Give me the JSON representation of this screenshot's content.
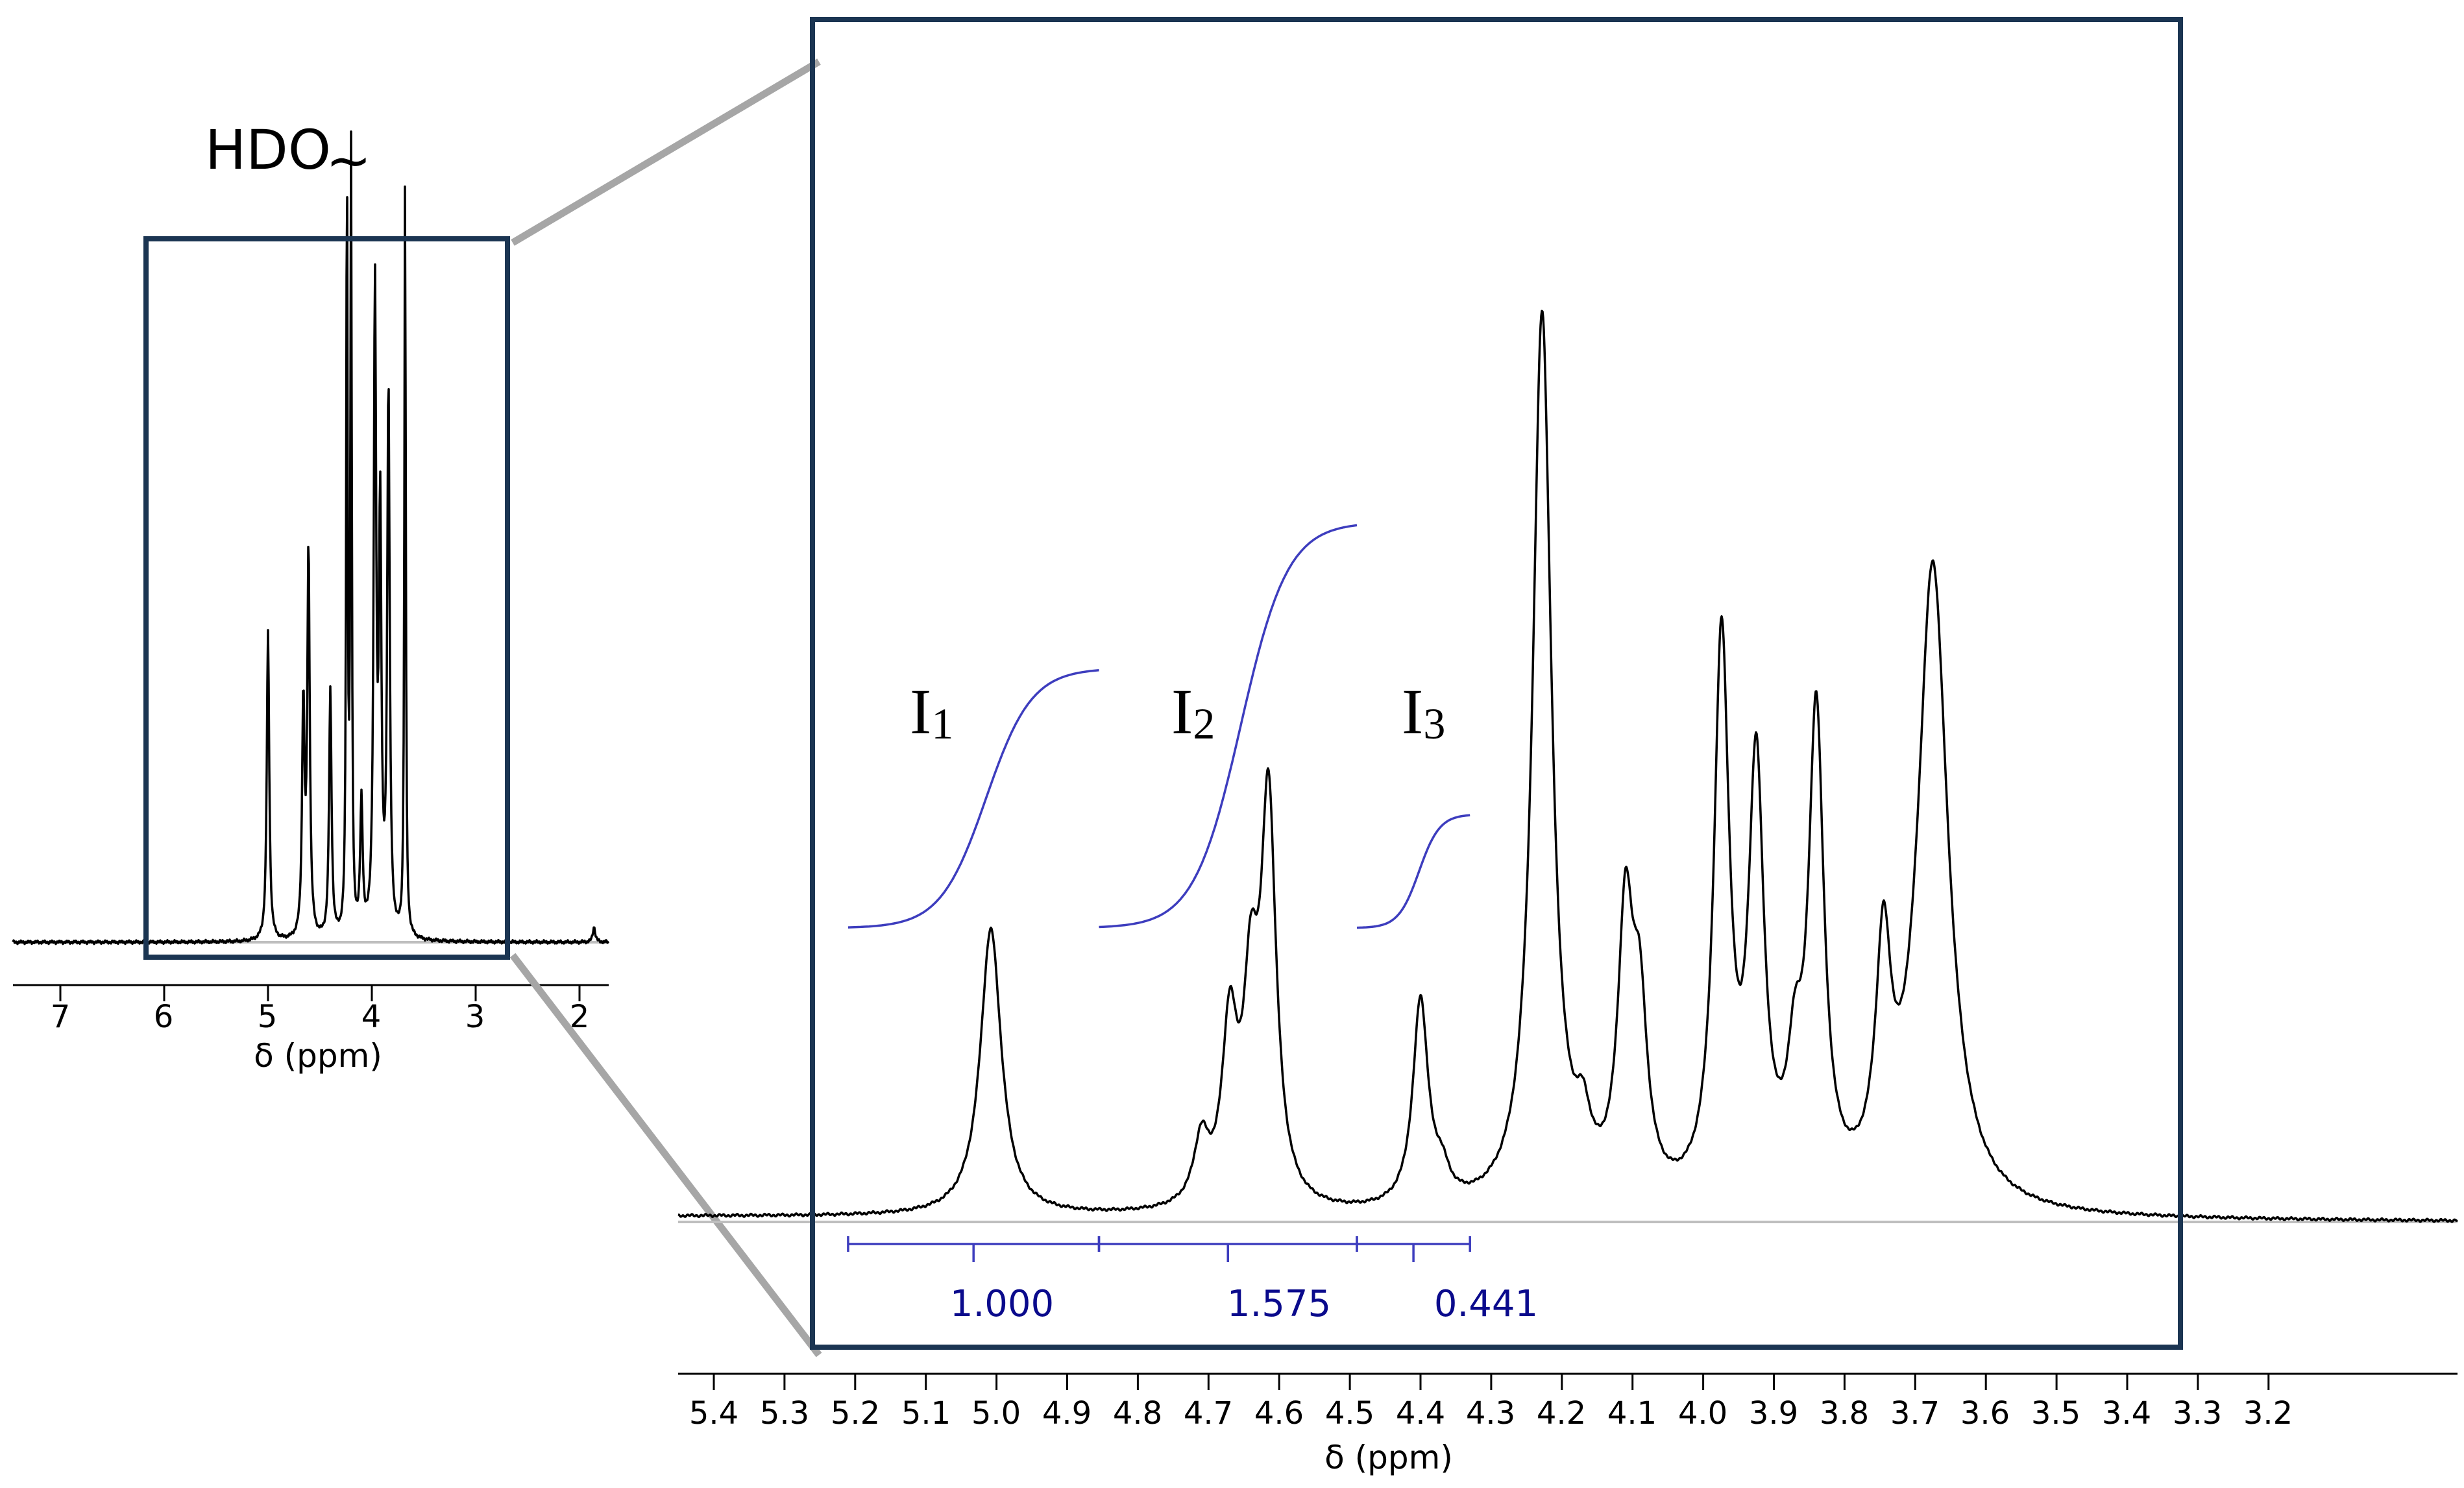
{
  "colors": {
    "spectrum": "#000000",
    "baseline": "#bfbfbf",
    "box": "#1b3552",
    "connector": "#a6a6a6",
    "integral": "#3d3dbe",
    "integral_value": "#0a0a8c"
  },
  "overview": {
    "annotation": "HDO",
    "annotation_mark": "~",
    "xlabel": "δ (ppm)",
    "ticks": [
      "7",
      "6",
      "5",
      "4",
      "3",
      "2"
    ]
  },
  "zoom": {
    "xlabel": "δ (ppm)",
    "ticks": [
      "5.4",
      "5.3",
      "5.2",
      "5.1",
      "5.0",
      "4.9",
      "4.8",
      "4.7",
      "4.6",
      "4.5",
      "4.4",
      "4.3",
      "4.2",
      "4.1",
      "4.0",
      "3.9",
      "3.8",
      "3.7",
      "3.6",
      "3.5",
      "3.4",
      "3.3",
      "3.2"
    ]
  },
  "integrals": [
    {
      "main": "I",
      "sub": "1",
      "value": "1.000"
    },
    {
      "main": "I",
      "sub": "2",
      "value": "1.575"
    },
    {
      "main": "I",
      "sub": "3",
      "value": "0.441"
    }
  ],
  "chart_data": [
    {
      "type": "line",
      "xlabel": "δ (ppm)",
      "xlim": [
        7.45,
        1.75
      ],
      "x_reversed": true,
      "ticks": [
        7,
        6,
        5,
        4,
        3,
        2
      ],
      "inset_region_ppm": [
        6.15,
        2.75
      ],
      "annotation": {
        "label": "HDO",
        "ppm": 4.22
      },
      "peaks": [
        {
          "ppm": 5.0,
          "height": 0.4
        },
        {
          "ppm": 4.66,
          "height": 0.3
        },
        {
          "ppm": 4.61,
          "height": 0.5
        },
        {
          "ppm": 4.4,
          "height": 0.32
        },
        {
          "ppm": 4.24,
          "height": 1.0
        },
        {
          "ppm": 4.2,
          "height": 1.0
        },
        {
          "ppm": 4.1,
          "height": 0.17
        },
        {
          "ppm": 3.97,
          "height": 0.83
        },
        {
          "ppm": 3.92,
          "height": 0.53
        },
        {
          "ppm": 3.84,
          "height": 0.71
        },
        {
          "ppm": 3.68,
          "height": 0.99
        },
        {
          "ppm": 1.86,
          "height": 0.02
        }
      ]
    },
    {
      "type": "line",
      "xlabel": "δ (ppm)",
      "xlim": [
        5.44,
        3.17
      ],
      "x_reversed": true,
      "ticks": [
        5.4,
        5.3,
        5.2,
        5.1,
        5.0,
        4.9,
        4.8,
        4.7,
        4.6,
        4.5,
        4.4,
        4.3,
        4.2,
        4.1,
        4.0,
        3.9,
        3.8,
        3.7,
        3.6,
        3.5,
        3.4,
        3.3,
        3.2
      ],
      "peaks": [
        {
          "ppm": 5.008,
          "height": 0.32
        },
        {
          "ppm": 4.71,
          "height": 0.07
        },
        {
          "ppm": 4.67,
          "height": 0.19
        },
        {
          "ppm": 4.64,
          "height": 0.21
        },
        {
          "ppm": 4.615,
          "height": 0.44
        },
        {
          "ppm": 4.4,
          "height": 0.23
        },
        {
          "ppm": 4.37,
          "height": 0.03
        },
        {
          "ppm": 4.228,
          "height": 1.0
        },
        {
          "ppm": 4.17,
          "height": 0.06
        },
        {
          "ppm": 4.11,
          "height": 0.3
        },
        {
          "ppm": 4.09,
          "height": 0.19
        },
        {
          "ppm": 3.974,
          "height": 0.62
        },
        {
          "ppm": 3.925,
          "height": 0.47
        },
        {
          "ppm": 3.87,
          "height": 0.12
        },
        {
          "ppm": 3.84,
          "height": 0.53
        },
        {
          "ppm": 3.745,
          "height": 0.25
        },
        {
          "ppm": 3.675,
          "height": 0.72
        }
      ],
      "integrals": [
        {
          "label": "I1",
          "from_ppm": 5.21,
          "to_ppm": 4.855,
          "value": 1.0
        },
        {
          "label": "I2",
          "from_ppm": 4.855,
          "to_ppm": 4.49,
          "value": 1.575
        },
        {
          "label": "I3",
          "from_ppm": 4.49,
          "to_ppm": 4.33,
          "value": 0.441
        }
      ]
    }
  ]
}
